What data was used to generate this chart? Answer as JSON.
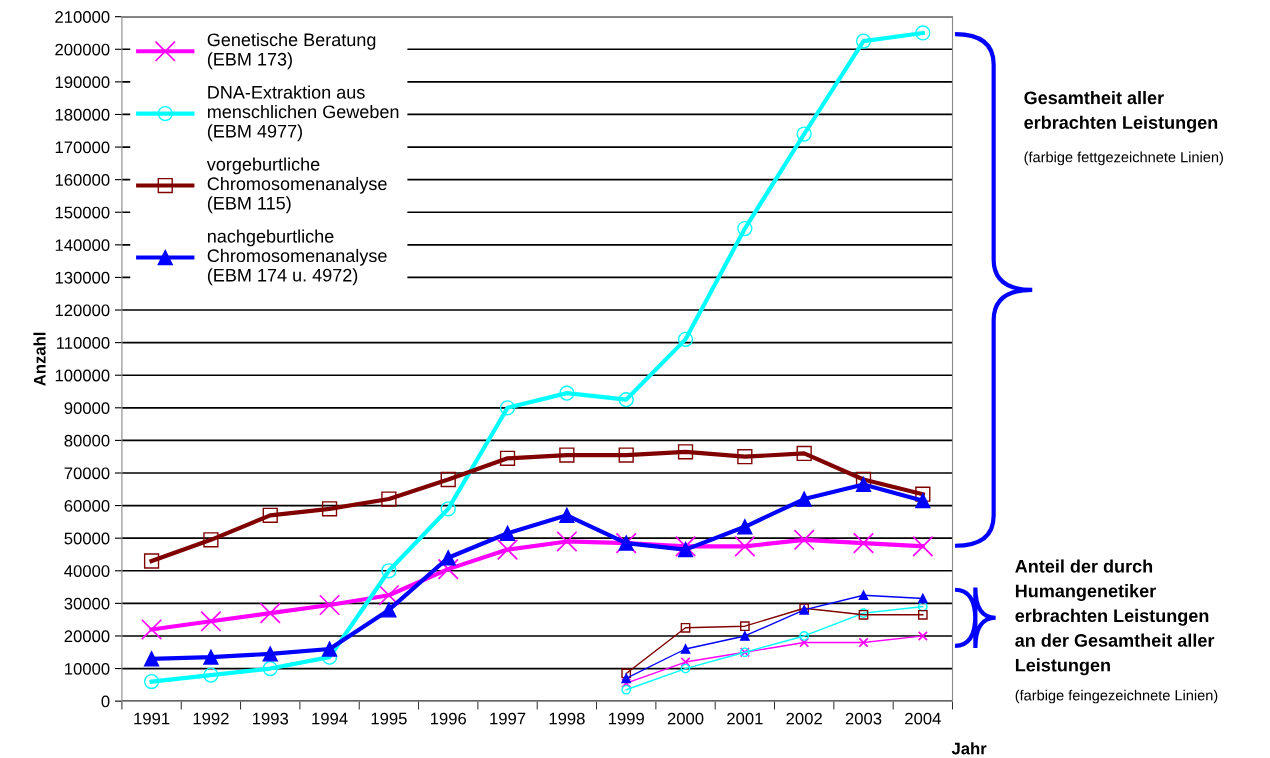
{
  "chart_data": {
    "type": "line",
    "xlabel": "Jahr",
    "ylabel": "Anzahl",
    "categories": [
      "1991",
      "1992",
      "1993",
      "1994",
      "1995",
      "1996",
      "1997",
      "1998",
      "1999",
      "2000",
      "2001",
      "2002",
      "2003",
      "2004"
    ],
    "ylim": [
      0,
      210000
    ],
    "yticks": [
      0,
      10000,
      20000,
      30000,
      40000,
      50000,
      60000,
      70000,
      80000,
      90000,
      100000,
      110000,
      120000,
      130000,
      140000,
      150000,
      160000,
      170000,
      180000,
      190000,
      200000,
      210000
    ],
    "grid": "y",
    "legend": "top left",
    "series": [
      {
        "name": "Genetische Beratung\n(EBM 173)",
        "color": "#ff00ff",
        "marker": "cross",
        "values": [
          22000,
          24500,
          27000,
          29500,
          32500,
          40500,
          46500,
          49000,
          48500,
          47500,
          47500,
          49500,
          48500,
          47500
        ]
      },
      {
        "name": "DNA-Extraktion aus\nmenschlichen Geweben\n(EBM 4977)",
        "color": "#00ffff",
        "marker": "circle",
        "values": [
          6000,
          8000,
          10000,
          13500,
          40000,
          59000,
          90000,
          94500,
          92500,
          111000,
          145000,
          174000,
          202500,
          205000
        ]
      },
      {
        "name": "vorgeburtliche\nChromosomenanalyse\n(EBM 115)",
        "color": "#800000",
        "marker": "square",
        "values": [
          43000,
          49500,
          57000,
          59000,
          62000,
          68000,
          74500,
          75500,
          75500,
          76500,
          75000,
          76000,
          68000,
          63500
        ]
      },
      {
        "name": "nachgeburtliche\nChromosomenanalyse\n(EBM 174 u. 4972)",
        "color": "#0000ff",
        "marker": "triangle",
        "values": [
          13000,
          13500,
          14500,
          16000,
          28000,
          44000,
          51500,
          57000,
          48500,
          46500,
          53500,
          62000,
          66500,
          61500
        ]
      },
      {
        "color": "#ff00ff",
        "marker": "cross",
        "values": [
          null,
          null,
          null,
          null,
          null,
          null,
          null,
          null,
          5500,
          12000,
          15000,
          18000,
          18000,
          20000
        ]
      },
      {
        "color": "#00ffff",
        "marker": "circle",
        "values": [
          null,
          null,
          null,
          null,
          null,
          null,
          null,
          null,
          3500,
          10000,
          15000,
          20000,
          27000,
          29000
        ]
      },
      {
        "color": "#800000",
        "marker": "square",
        "values": [
          null,
          null,
          null,
          null,
          null,
          null,
          null,
          null,
          8500,
          22500,
          23000,
          28500,
          26500,
          26500
        ]
      },
      {
        "color": "#0000ff",
        "marker": "triangle",
        "values": [
          null,
          null,
          null,
          null,
          null,
          null,
          null,
          null,
          7000,
          16000,
          20000,
          28000,
          32500,
          31500
        ]
      }
    ],
    "annotations": [
      "Gesamtheit aller\nerbrachten Leistungen",
      "(farbige fettgezeichnete Linien)",
      "Anteil der durch\nHumangenetiker\nerbrachten Leistungen\nan der Gesamtheit aller\nLeistungen",
      "(farbige feingezeichnete Linien)"
    ]
  }
}
